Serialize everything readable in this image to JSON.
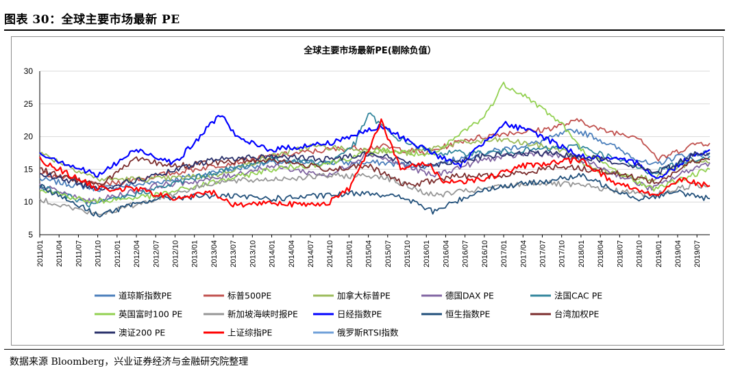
{
  "figure": {
    "title": "图表 30：全球主要市场最新 PE",
    "source": "数据来源 Bloomberg，兴业证券经济与金融研究院整理"
  },
  "chart_data": {
    "type": "line",
    "title": "全球主要市场最新PE(剔除负值）",
    "ylim": [
      5,
      30
    ],
    "yticks": [
      5,
      10,
      15,
      20,
      25,
      30
    ],
    "xlim": [
      "2011/01",
      "2019/09"
    ],
    "xticks": [
      "2011/01",
      "2011/04",
      "2011/07",
      "2011/10",
      "2012/01",
      "2012/04",
      "2012/07",
      "2012/10",
      "2013/01",
      "2013/04",
      "2013/07",
      "2013/10",
      "2014/01",
      "2014/04",
      "2014/07",
      "2014/10",
      "2015/01",
      "2015/04",
      "2015/07",
      "2015/10",
      "2016/01",
      "2016/04",
      "2016/07",
      "2016/10",
      "2017/01",
      "2017/04",
      "2017/07",
      "2017/10",
      "2018/01",
      "2018/04",
      "2018/07",
      "2018/10",
      "2019/01",
      "2019/04",
      "2019/07"
    ],
    "grid": true,
    "legend_position": "bottom",
    "series": [
      {
        "name": "道琼斯指数PE",
        "color": "#4a7ebb",
        "points": [
          [
            "2011/01",
            13.5
          ],
          [
            "2011/10",
            12.0
          ],
          [
            "2012/07",
            13.0
          ],
          [
            "2013/04",
            14.5
          ],
          [
            "2014/01",
            16.0
          ],
          [
            "2014/10",
            16.0
          ],
          [
            "2015/06",
            16.0
          ],
          [
            "2016/01",
            15.5
          ],
          [
            "2016/10",
            17.5
          ],
          [
            "2017/06",
            19.0
          ],
          [
            "2017/12",
            21.0
          ],
          [
            "2018/03",
            20.0
          ],
          [
            "2018/12",
            15.5
          ],
          [
            "2019/04",
            17.0
          ],
          [
            "2019/09",
            17.5
          ]
        ]
      },
      {
        "name": "标普500PE",
        "color": "#c0504d",
        "points": [
          [
            "2011/01",
            14.5
          ],
          [
            "2011/10",
            12.5
          ],
          [
            "2012/07",
            14.0
          ],
          [
            "2013/04",
            15.5
          ],
          [
            "2014/01",
            17.0
          ],
          [
            "2014/10",
            18.0
          ],
          [
            "2015/06",
            18.5
          ],
          [
            "2016/01",
            17.5
          ],
          [
            "2016/07",
            19.5
          ],
          [
            "2017/01",
            20.5
          ],
          [
            "2017/07",
            21.0
          ],
          [
            "2018/01",
            22.5
          ],
          [
            "2018/04",
            21.0
          ],
          [
            "2018/10",
            20.0
          ],
          [
            "2019/01",
            16.5
          ],
          [
            "2019/07",
            19.0
          ],
          [
            "2019/09",
            19.0
          ]
        ]
      },
      {
        "name": "加拿大标普PE",
        "color": "#9bbb59",
        "points": [
          [
            "2011/01",
            17.5
          ],
          [
            "2011/10",
            13.5
          ],
          [
            "2012/07",
            13.5
          ],
          [
            "2013/04",
            14.0
          ],
          [
            "2014/01",
            17.0
          ],
          [
            "2014/07",
            18.5
          ],
          [
            "2015/03",
            18.0
          ],
          [
            "2015/10",
            17.5
          ],
          [
            "2016/06",
            19.0
          ],
          [
            "2017/01",
            19.5
          ],
          [
            "2017/10",
            18.0
          ],
          [
            "2018/03",
            15.0
          ],
          [
            "2018/12",
            13.5
          ],
          [
            "2019/06",
            16.0
          ],
          [
            "2019/09",
            16.0
          ]
        ]
      },
      {
        "name": "德国DAX PE",
        "color": "#8064a2",
        "points": [
          [
            "2011/01",
            12.5
          ],
          [
            "2011/09",
            10.0
          ],
          [
            "2012/07",
            12.5
          ],
          [
            "2013/04",
            13.5
          ],
          [
            "2014/01",
            15.5
          ],
          [
            "2014/10",
            14.0
          ],
          [
            "2015/04",
            17.5
          ],
          [
            "2016/02",
            14.0
          ],
          [
            "2016/10",
            16.5
          ],
          [
            "2017/06",
            17.5
          ],
          [
            "2018/01",
            16.5
          ],
          [
            "2018/12",
            12.0
          ],
          [
            "2019/06",
            15.0
          ],
          [
            "2019/09",
            16.0
          ]
        ]
      },
      {
        "name": "法国CAC PE",
        "color": "#31859c",
        "points": [
          [
            "2011/01",
            12.5
          ],
          [
            "2011/09",
            9.5
          ],
          [
            "2012/07",
            12.0
          ],
          [
            "2013/04",
            14.5
          ],
          [
            "2014/01",
            16.5
          ],
          [
            "2014/10",
            16.0
          ],
          [
            "2015/02",
            19.0
          ],
          [
            "2015/04",
            23.5
          ],
          [
            "2015/08",
            20.0
          ],
          [
            "2016/02",
            17.5
          ],
          [
            "2016/10",
            17.5
          ],
          [
            "2017/06",
            18.0
          ],
          [
            "2018/01",
            18.5
          ],
          [
            "2018/12",
            14.5
          ],
          [
            "2019/06",
            16.5
          ],
          [
            "2019/09",
            17.0
          ]
        ]
      },
      {
        "name": "英国富时100 PE",
        "color": "#92d050",
        "points": [
          [
            "2011/01",
            12.0
          ],
          [
            "2011/09",
            10.0
          ],
          [
            "2012/07",
            11.0
          ],
          [
            "2013/04",
            13.0
          ],
          [
            "2014/01",
            15.0
          ],
          [
            "2014/10",
            16.0
          ],
          [
            "2015/06",
            18.0
          ],
          [
            "2016/02",
            17.0
          ],
          [
            "2016/07",
            21.0
          ],
          [
            "2016/10",
            23.0
          ],
          [
            "2017/01",
            28.0
          ],
          [
            "2017/04",
            26.5
          ],
          [
            "2017/10",
            22.0
          ],
          [
            "2018/01",
            18.0
          ],
          [
            "2018/06",
            15.0
          ],
          [
            "2018/12",
            12.0
          ],
          [
            "2019/06",
            14.0
          ],
          [
            "2019/09",
            15.0
          ]
        ]
      },
      {
        "name": "新加坡海峡时报PE",
        "color": "#969696",
        "points": [
          [
            "2011/01",
            10.5
          ],
          [
            "2011/10",
            8.0
          ],
          [
            "2012/07",
            10.5
          ],
          [
            "2013/04",
            13.0
          ],
          [
            "2014/01",
            13.5
          ],
          [
            "2014/10",
            14.0
          ],
          [
            "2015/06",
            14.0
          ],
          [
            "2016/02",
            11.0
          ],
          [
            "2016/10",
            12.0
          ],
          [
            "2017/06",
            13.0
          ],
          [
            "2018/01",
            12.5
          ],
          [
            "2018/12",
            11.0
          ],
          [
            "2019/06",
            12.5
          ],
          [
            "2019/09",
            12.5
          ]
        ]
      },
      {
        "name": "日经指数PE",
        "color": "#0000ff",
        "points": [
          [
            "2011/01",
            17.5
          ],
          [
            "2011/10",
            14.0
          ],
          [
            "2012/04",
            18.0
          ],
          [
            "2012/10",
            16.0
          ],
          [
            "2013/01",
            19.0
          ],
          [
            "2013/05",
            23.5
          ],
          [
            "2013/08",
            19.5
          ],
          [
            "2014/01",
            18.0
          ],
          [
            "2014/10",
            19.0
          ],
          [
            "2015/01",
            20.0
          ],
          [
            "2015/06",
            21.5
          ],
          [
            "2015/12",
            18.5
          ],
          [
            "2016/06",
            15.5
          ],
          [
            "2017/01",
            22.0
          ],
          [
            "2017/06",
            20.5
          ],
          [
            "2018/01",
            17.0
          ],
          [
            "2018/10",
            16.0
          ],
          [
            "2019/01",
            13.5
          ],
          [
            "2019/06",
            17.0
          ],
          [
            "2019/09",
            18.0
          ]
        ]
      },
      {
        "name": "恒生指数PE",
        "color": "#1f4e79",
        "points": [
          [
            "2011/01",
            12.5
          ],
          [
            "2011/10",
            8.0
          ],
          [
            "2012/07",
            10.5
          ],
          [
            "2013/04",
            11.0
          ],
          [
            "2014/01",
            10.5
          ],
          [
            "2014/10",
            11.0
          ],
          [
            "2015/04",
            11.5
          ],
          [
            "2015/10",
            10.5
          ],
          [
            "2016/02",
            8.5
          ],
          [
            "2016/10",
            12.0
          ],
          [
            "2017/06",
            13.0
          ],
          [
            "2018/01",
            14.0
          ],
          [
            "2018/10",
            10.5
          ],
          [
            "2019/04",
            11.5
          ],
          [
            "2019/09",
            10.5
          ]
        ]
      },
      {
        "name": "台湾加权PE",
        "color": "#7b2c2c",
        "points": [
          [
            "2011/01",
            15.0
          ],
          [
            "2011/10",
            12.5
          ],
          [
            "2012/04",
            16.5
          ],
          [
            "2012/10",
            15.5
          ],
          [
            "2013/04",
            16.0
          ],
          [
            "2014/01",
            16.5
          ],
          [
            "2014/10",
            15.0
          ],
          [
            "2015/04",
            15.5
          ],
          [
            "2015/10",
            12.5
          ],
          [
            "2016/06",
            14.0
          ],
          [
            "2017/01",
            14.0
          ],
          [
            "2017/10",
            15.5
          ],
          [
            "2018/06",
            14.5
          ],
          [
            "2019/01",
            13.0
          ],
          [
            "2019/06",
            16.0
          ],
          [
            "2019/09",
            16.5
          ]
        ]
      },
      {
        "name": "澳证200 PE",
        "color": "#29306a",
        "points": [
          [
            "2011/01",
            14.5
          ],
          [
            "2011/10",
            12.0
          ],
          [
            "2012/07",
            14.0
          ],
          [
            "2013/04",
            16.5
          ],
          [
            "2014/01",
            17.0
          ],
          [
            "2014/10",
            16.5
          ],
          [
            "2015/04",
            17.5
          ],
          [
            "2016/01",
            15.5
          ],
          [
            "2016/10",
            17.0
          ],
          [
            "2017/06",
            17.5
          ],
          [
            "2018/01",
            17.0
          ],
          [
            "2018/10",
            15.5
          ],
          [
            "2019/01",
            14.5
          ],
          [
            "2019/07",
            17.5
          ],
          [
            "2019/09",
            17.5
          ]
        ]
      },
      {
        "name": "上证综指PE",
        "color": "#ff0000",
        "points": [
          [
            "2011/01",
            16.5
          ],
          [
            "2011/10",
            12.0
          ],
          [
            "2012/04",
            12.0
          ],
          [
            "2012/10",
            10.5
          ],
          [
            "2013/04",
            11.5
          ],
          [
            "2013/07",
            9.5
          ],
          [
            "2014/01",
            10.0
          ],
          [
            "2014/06",
            9.5
          ],
          [
            "2014/10",
            10.0
          ],
          [
            "2015/01",
            12.0
          ],
          [
            "2015/04",
            18.0
          ],
          [
            "2015/06",
            22.5
          ],
          [
            "2015/09",
            15.0
          ],
          [
            "2016/01",
            16.0
          ],
          [
            "2016/04",
            13.0
          ],
          [
            "2016/10",
            13.5
          ],
          [
            "2017/04",
            15.5
          ],
          [
            "2018/01",
            16.5
          ],
          [
            "2018/06",
            13.0
          ],
          [
            "2019/01",
            11.0
          ],
          [
            "2019/04",
            13.5
          ],
          [
            "2019/09",
            12.5
          ]
        ]
      },
      {
        "name": "俄罗斯RTSI指数",
        "color": "#6f9fd8",
        "points": []
      }
    ]
  }
}
